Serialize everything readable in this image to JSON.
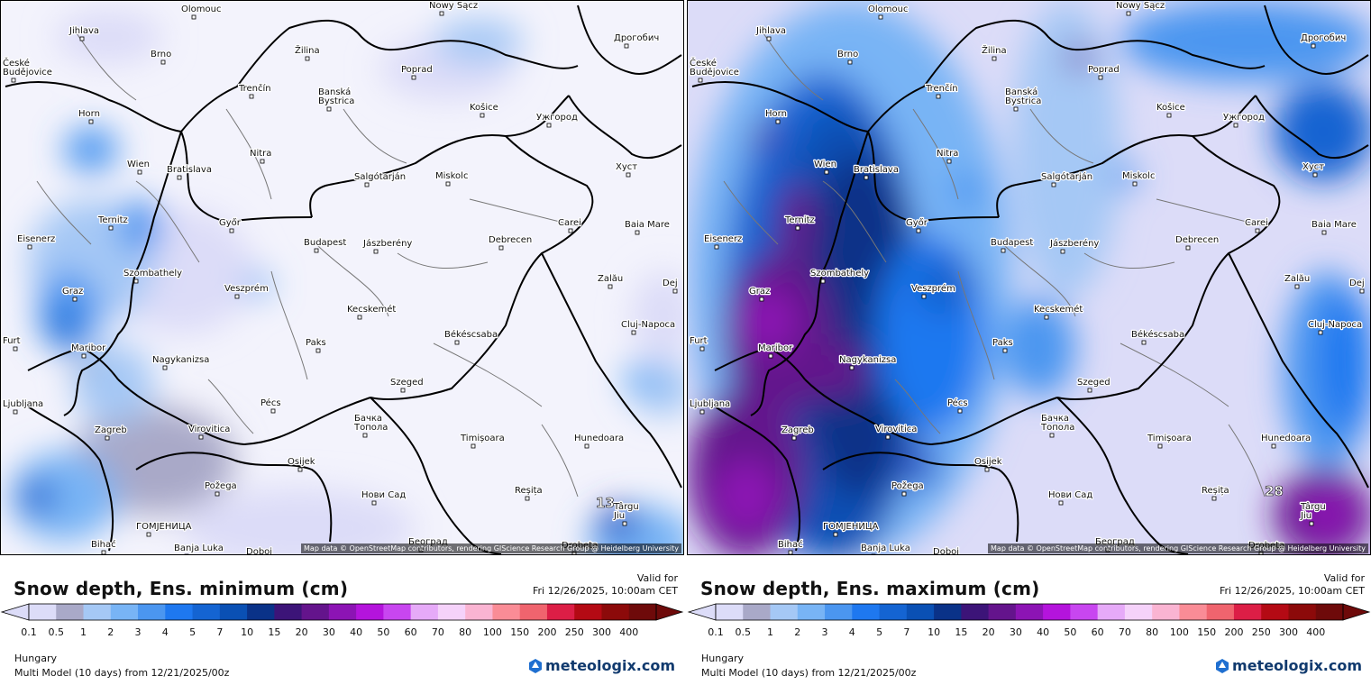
{
  "panels": [
    {
      "id": "min",
      "title": "Snow depth, Ens. minimum (cm)",
      "valid_label": "Valid for",
      "valid_time": "Fri 12/26/2025, 10:00am CET",
      "region": "Hungary",
      "model": "Multi Model (10 days) from  12/21/2025/00z",
      "max_label": "13"
    },
    {
      "id": "max",
      "title": "Snow depth, Ens. maximum (cm)",
      "valid_label": "Valid for",
      "valid_time": "Fri 12/26/2025, 10:00am CET",
      "region": "Hungary",
      "model": "Multi Model (10 days) from  12/21/2025/00z",
      "max_label": "28"
    }
  ],
  "attribution": "Map data © OpenStreetMap contributors, rendering GIScience Research Group @ Heidelberg University",
  "logo_text": "meteologix.com",
  "legend": {
    "values": [
      "0.1",
      "0.5",
      "1",
      "2",
      "3",
      "4",
      "5",
      "7",
      "10",
      "15",
      "20",
      "30",
      "40",
      "50",
      "60",
      "70",
      "80",
      "100",
      "150",
      "200",
      "250",
      "300",
      "400"
    ],
    "colors": [
      "#dcdcf8",
      "#a9a9c8",
      "#a5c8f5",
      "#78b4f5",
      "#4b96f0",
      "#1e78f0",
      "#1464d2",
      "#0a50b4",
      "#0a3288",
      "#3c1478",
      "#64148c",
      "#8c14b4",
      "#b414dc",
      "#c846f0",
      "#e6aaf8",
      "#f5d2fa",
      "#fab4d2",
      "#fa8c96",
      "#f0646e",
      "#dc1e46",
      "#b40a14",
      "#8c0a0a",
      "#6e0a0a"
    ]
  },
  "cities": [
    {
      "name": "Olomouc"
    },
    {
      "name": "Nowy Sącz"
    },
    {
      "name": "Jihlava"
    },
    {
      "name": "Brno"
    },
    {
      "name": "Žilina"
    },
    {
      "name": "Poprad"
    },
    {
      "name": "Дрогобич"
    },
    {
      "name": "České Budějovice"
    },
    {
      "name": "Trenčín"
    },
    {
      "name": "Banská Bystrica"
    },
    {
      "name": "Košice"
    },
    {
      "name": "Ужгород"
    },
    {
      "name": "Horn"
    },
    {
      "name": "Nitra"
    },
    {
      "name": "Wien"
    },
    {
      "name": "Bratislava"
    },
    {
      "name": "Salgótarján"
    },
    {
      "name": "Miskolc"
    },
    {
      "name": "Хуст"
    },
    {
      "name": "Ternitz"
    },
    {
      "name": "Győr"
    },
    {
      "name": "Carei"
    },
    {
      "name": "Baia Mare"
    },
    {
      "name": "Eisenerz"
    },
    {
      "name": "Budapest"
    },
    {
      "name": "Jászberény"
    },
    {
      "name": "Debrecen"
    },
    {
      "name": "Szombathely"
    },
    {
      "name": "Zalău"
    },
    {
      "name": "Graz"
    },
    {
      "name": "Veszprém"
    },
    {
      "name": "Kecskemét"
    },
    {
      "name": "Cluj-Napoca"
    },
    {
      "name": "Paks"
    },
    {
      "name": "Békéscsaba"
    },
    {
      "name": "Maribor"
    },
    {
      "name": "Nagykanizsa"
    },
    {
      "name": "Szeged"
    },
    {
      "name": "Pécs"
    },
    {
      "name": "Ljubljana"
    },
    {
      "name": "Бачка Топола"
    },
    {
      "name": "Zagreb"
    },
    {
      "name": "Virovitica"
    },
    {
      "name": "Timișoara"
    },
    {
      "name": "Hunedoara"
    },
    {
      "name": "Osijek"
    },
    {
      "name": "Reșița"
    },
    {
      "name": "Požega"
    },
    {
      "name": "Нови Сад"
    },
    {
      "name": "Târgu Jiu"
    },
    {
      "name": "ГОМЈЕНИЦА"
    },
    {
      "name": "Bihać"
    },
    {
      "name": "Banja Luka"
    },
    {
      "name": "Doboj"
    },
    {
      "name": "Београд"
    },
    {
      "name": "Drobeta"
    },
    {
      "name": "Dej"
    },
    {
      "name": "Furt"
    }
  ]
}
